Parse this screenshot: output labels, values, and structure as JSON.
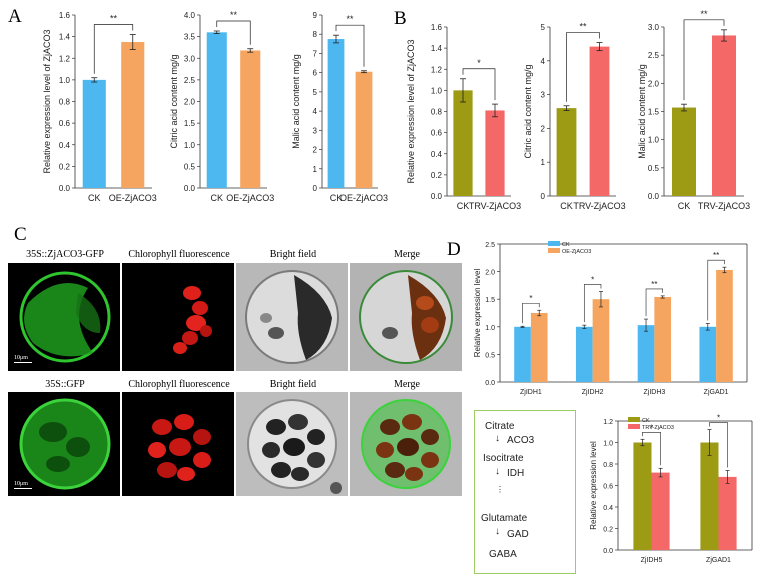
{
  "panel_labels": {
    "a": "A",
    "b": "B",
    "c": "C",
    "d": "D"
  },
  "colors": {
    "ck_blue": "#4db8f0",
    "oe_orange": "#f5a55f",
    "olive": "#9d9a14",
    "trv_red": "#f46868"
  },
  "micrographs": {
    "row1_label": "35S::ZjACO3-GFP",
    "row2_label": "35S::GFP",
    "col2": "Chlorophyll fluorescence",
    "col3": "Bright field",
    "col4": "Merge",
    "scale_label": "10μm"
  },
  "pathway": {
    "citrate": "Citrate",
    "aco3": "ACO3",
    "isocitrate": "Isocitrate",
    "idh": "IDH",
    "glutamate": "Glutamate",
    "gad": "GAD",
    "gaba": "GABA"
  },
  "chart_data": [
    {
      "id": "A1",
      "type": "bar",
      "categories": [
        "CK",
        "OE-ZjACO3"
      ],
      "values": [
        1.0,
        1.35
      ],
      "errors": [
        0.02,
        0.07
      ],
      "ylabel": "Relative expression level of ZjACO3",
      "ylim": [
        0,
        1.6
      ],
      "yticks": [
        "0.0",
        "0.2",
        "0.4",
        "0.6",
        "0.8",
        "1.0",
        "1.2",
        "1.4",
        "1.6"
      ],
      "significance": "**",
      "colors": [
        "#4db8f0",
        "#f5a55f"
      ]
    },
    {
      "id": "A2",
      "type": "bar",
      "categories": [
        "CK",
        "OE-ZjACO3"
      ],
      "values": [
        3.6,
        3.18
      ],
      "errors": [
        0.03,
        0.04
      ],
      "ylabel": "Citric acid content mg/g",
      "ylim": [
        0,
        4.0
      ],
      "yticks": [
        "0.0",
        "0.5",
        "1.0",
        "1.5",
        "2.0",
        "2.5",
        "3.0",
        "3.5",
        "4.0"
      ],
      "significance": "**",
      "colors": [
        "#4db8f0",
        "#f5a55f"
      ]
    },
    {
      "id": "A3",
      "type": "bar",
      "categories": [
        "CK",
        "OE-ZjACO3"
      ],
      "values": [
        7.75,
        6.05
      ],
      "errors": [
        0.2,
        0.05
      ],
      "ylabel": "Malic acid content mg/g",
      "ylim": [
        0,
        9
      ],
      "yticks": [
        "0",
        "1",
        "2",
        "3",
        "4",
        "5",
        "6",
        "7",
        "8",
        "9"
      ],
      "significance": "**",
      "colors": [
        "#4db8f0",
        "#f5a55f"
      ]
    },
    {
      "id": "B1",
      "type": "bar",
      "categories": [
        "CK",
        "TRV-ZjACO3"
      ],
      "values": [
        1.0,
        0.81
      ],
      "errors": [
        0.11,
        0.06
      ],
      "ylabel": "Relative expression level of ZjACO3",
      "ylim": [
        0,
        1.6
      ],
      "yticks": [
        "0.0",
        "0.2",
        "0.4",
        "0.6",
        "0.8",
        "1.0",
        "1.2",
        "1.4",
        "1.6"
      ],
      "significance": "*",
      "colors": [
        "#9d9a14",
        "#f46868"
      ]
    },
    {
      "id": "B2",
      "type": "bar",
      "categories": [
        "CK",
        "TRV-ZjACO3"
      ],
      "values": [
        2.6,
        4.42
      ],
      "errors": [
        0.07,
        0.12
      ],
      "ylabel": "Citric acid content mg/g",
      "ylim": [
        0,
        5
      ],
      "yticks": [
        "0",
        "1",
        "2",
        "3",
        "4",
        "5"
      ],
      "significance": "**",
      "colors": [
        "#9d9a14",
        "#f46868"
      ]
    },
    {
      "id": "B3",
      "type": "bar",
      "categories": [
        "CK",
        "TRV-ZjACO3"
      ],
      "values": [
        1.57,
        2.85
      ],
      "errors": [
        0.06,
        0.1
      ],
      "ylabel": "Malic acid content mg/g",
      "ylim": [
        0,
        3.0
      ],
      "yticks": [
        "0.0",
        "0.5",
        "1.0",
        "1.5",
        "2.0",
        "2.5",
        "3.0"
      ],
      "significance": "**",
      "colors": [
        "#9d9a14",
        "#f46868"
      ]
    },
    {
      "id": "D1",
      "type": "bar",
      "categories": [
        "ZjIDH1",
        "ZjIDH2",
        "ZjIDH3",
        "ZjGAD1"
      ],
      "series": [
        {
          "name": "CK",
          "values": [
            1.0,
            1.0,
            1.03,
            1.0
          ],
          "errors": [
            0.01,
            0.03,
            0.11,
            0.06
          ],
          "color": "#4db8f0"
        },
        {
          "name": "OE-ZjACO3",
          "values": [
            1.25,
            1.5,
            1.54,
            2.03
          ],
          "errors": [
            0.05,
            0.14,
            0.02,
            0.05
          ],
          "color": "#f5a55f"
        }
      ],
      "significance": [
        "*",
        "*",
        "**",
        "**"
      ],
      "ylabel": "Relative expression level",
      "ylim": [
        0,
        2.5
      ],
      "yticks": [
        "0.0",
        "0.5",
        "1.0",
        "1.5",
        "2.0",
        "2.5"
      ],
      "legend": "top-left"
    },
    {
      "id": "D2",
      "type": "bar",
      "categories": [
        "ZjIDH5",
        "ZjGAD1"
      ],
      "series": [
        {
          "name": "CK",
          "values": [
            1.0,
            1.0
          ],
          "errors": [
            0.03,
            0.12
          ],
          "color": "#9d9a14"
        },
        {
          "name": "TRV-ZjACO3",
          "values": [
            0.72,
            0.68
          ],
          "errors": [
            0.04,
            0.06
          ],
          "color": "#f46868"
        }
      ],
      "significance": [
        "*",
        "*"
      ],
      "ylabel": "Relative expression level",
      "ylim": [
        0,
        1.2
      ],
      "yticks": [
        "0.0",
        "0.2",
        "0.4",
        "0.6",
        "0.8",
        "1.0",
        "1.2"
      ],
      "legend": "top-left"
    }
  ]
}
